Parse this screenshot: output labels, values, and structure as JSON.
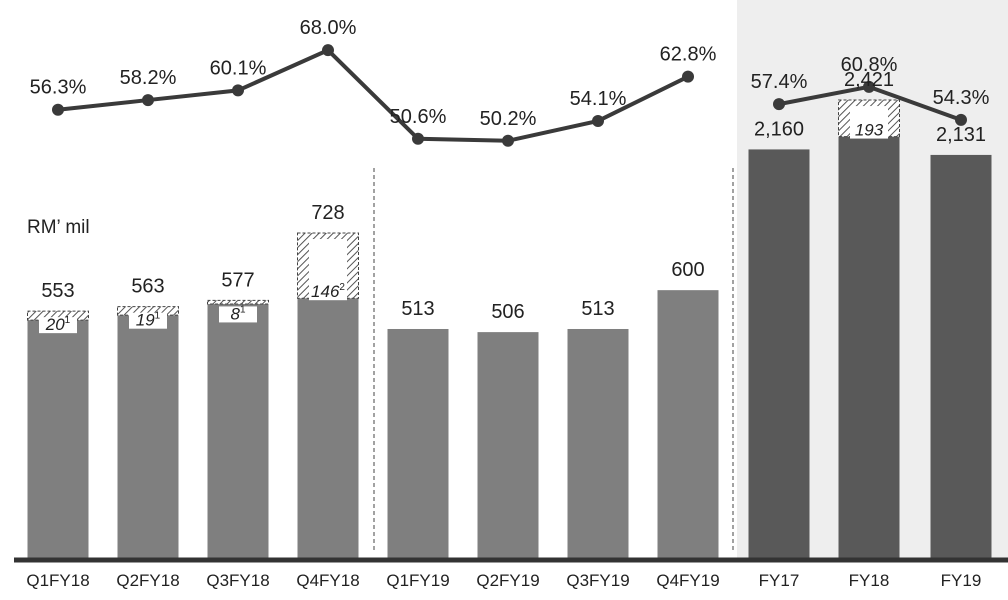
{
  "unit_label": "RM’ mil",
  "colors": {
    "bar_quarter": "#7f7f7f",
    "bar_year": "#595959",
    "line": "#3a3a3a",
    "panel_fy": "#eeeeee",
    "axis": "#333333",
    "text": "#222222"
  },
  "chart_data": {
    "type": "bar",
    "categories": [
      "Q1FY18",
      "Q2FY18",
      "Q3FY18",
      "Q4FY18",
      "Q1FY19",
      "Q2FY19",
      "Q3FY19",
      "Q4FY19",
      "FY17",
      "FY18",
      "FY19"
    ],
    "series": [
      {
        "type": "bar",
        "values": [
          553,
          563,
          577,
          728,
          513,
          506,
          513,
          600,
          2160,
          2421,
          2131
        ],
        "labels": [
          "553",
          "563",
          "577",
          "728",
          "513",
          "506",
          "513",
          "600",
          "2,160",
          "2,421",
          "2,131"
        ]
      },
      {
        "type": "bar-segment",
        "values": [
          20,
          19,
          8,
          146,
          null,
          null,
          null,
          null,
          null,
          193,
          null
        ],
        "labels": [
          "20",
          "19",
          "8",
          "146",
          "",
          "",
          "",
          "",
          "",
          "193",
          ""
        ],
        "footnotes": [
          "1",
          "1",
          "1",
          "2",
          "",
          "",
          "",
          "",
          "",
          "",
          ""
        ]
      },
      {
        "type": "line",
        "values": [
          56.3,
          58.2,
          60.1,
          68.0,
          50.6,
          50.2,
          54.1,
          62.8,
          57.4,
          60.8,
          54.3
        ],
        "labels": [
          "56.3%",
          "58.2%",
          "60.1%",
          "68.0%",
          "50.6%",
          "50.2%",
          "54.1%",
          "62.8%",
          "57.4%",
          "60.8%",
          "54.3%"
        ]
      }
    ],
    "groups": [
      {
        "indices": [
          0,
          1,
          2,
          3
        ],
        "bar_scale_max": 1250
      },
      {
        "indices": [
          4,
          5,
          6,
          7
        ],
        "bar_scale_max": 1250
      },
      {
        "indices": [
          8,
          9,
          10
        ],
        "bar_scale_max": 2950
      }
    ],
    "line_range": [
      48,
      70
    ],
    "legend": "none",
    "grid": false
  }
}
